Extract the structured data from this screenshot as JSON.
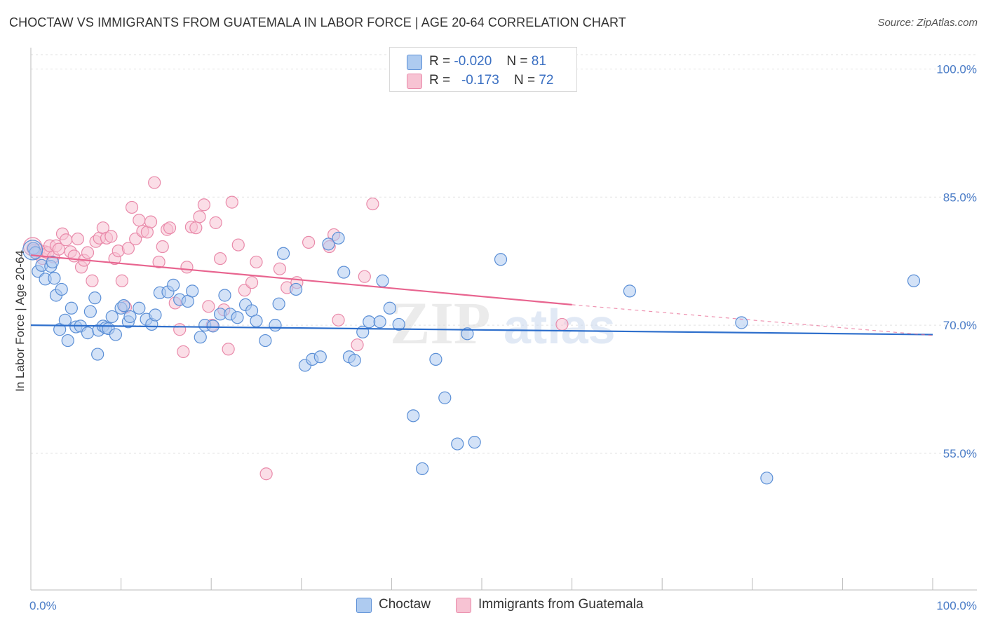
{
  "title": "CHOCTAW VS IMMIGRANTS FROM GUATEMALA IN LABOR FORCE | AGE 20-64 CORRELATION CHART",
  "source": "Source: ZipAtlas.com",
  "watermark": {
    "zip": "ZIP",
    "atlas": "atlas"
  },
  "legend_top": {
    "rows": [
      {
        "r_label": "R =",
        "r_value": "-0.020",
        "n_label": "N =",
        "n_value": "81"
      },
      {
        "r_label": "R =",
        "r_value": "-0.173",
        "n_label": "N =",
        "n_value": "72"
      }
    ]
  },
  "legend_bottom": {
    "series1": "Choctaw",
    "series2": "Immigrants from Guatemala"
  },
  "colors": {
    "blue_fill": "#aecbf0",
    "blue_stroke": "#5b8fd6",
    "blue_line": "#2e6fcc",
    "pink_fill": "#f7c3d3",
    "pink_stroke": "#e98aaa",
    "pink_line": "#e8648f",
    "tick_text": "#4a7cc7",
    "grid": "#e2e2e2"
  },
  "chart_data": {
    "type": "scatter",
    "title": "CHOCTAW VS IMMIGRANTS FROM GUATEMALA IN LABOR FORCE | AGE 20-64 CORRELATION CHART",
    "xlabel": "",
    "ylabel": "In Labor Force | Age 20-64",
    "xlim": [
      0,
      100
    ],
    "ylim": [
      39,
      102.5
    ],
    "x_tick_labels": [
      "0.0%",
      "100.0%"
    ],
    "y_ticks": [
      55,
      70,
      85,
      100
    ],
    "y_tick_labels": [
      "55.0%",
      "70.0%",
      "85.0%",
      "100.0%"
    ],
    "grid": true,
    "series": [
      {
        "name": "Choctaw",
        "R": -0.02,
        "N": 81,
        "trend": {
          "x0": 0,
          "y0": 70.0,
          "x1": 100,
          "y1": 68.9
        },
        "points": [
          [
            0.3,
            79
          ],
          [
            0.5,
            78.5
          ],
          [
            0.8,
            76.3
          ],
          [
            1.2,
            77.0
          ],
          [
            1.6,
            75.4
          ],
          [
            2.2,
            76.9
          ],
          [
            2.4,
            77.4
          ],
          [
            2.6,
            75.5
          ],
          [
            2.8,
            73.5
          ],
          [
            3.4,
            74.2
          ],
          [
            3.2,
            69.5
          ],
          [
            3.8,
            70.6
          ],
          [
            4.1,
            68.2
          ],
          [
            4.5,
            72.0
          ],
          [
            5.0,
            69.8
          ],
          [
            5.5,
            69.9
          ],
          [
            6.3,
            69.1
          ],
          [
            6.6,
            71.6
          ],
          [
            7.1,
            73.2
          ],
          [
            7.5,
            69.4
          ],
          [
            7.4,
            66.6
          ],
          [
            8.0,
            69.9
          ],
          [
            8.3,
            69.7
          ],
          [
            8.6,
            69.6
          ],
          [
            9.0,
            71.0
          ],
          [
            9.4,
            68.9
          ],
          [
            10.0,
            72.0
          ],
          [
            10.3,
            72.3
          ],
          [
            10.8,
            70.4
          ],
          [
            11.0,
            71.0
          ],
          [
            12.0,
            72.0
          ],
          [
            12.8,
            70.7
          ],
          [
            13.4,
            70.1
          ],
          [
            13.8,
            71.2
          ],
          [
            14.3,
            73.8
          ],
          [
            15.2,
            73.9
          ],
          [
            15.8,
            74.7
          ],
          [
            16.5,
            73.0
          ],
          [
            17.4,
            72.8
          ],
          [
            17.9,
            74.0
          ],
          [
            18.8,
            68.6
          ],
          [
            19.3,
            70.0
          ],
          [
            20.2,
            69.9
          ],
          [
            21.0,
            71.3
          ],
          [
            21.5,
            73.5
          ],
          [
            22.1,
            71.3
          ],
          [
            22.9,
            70.9
          ],
          [
            23.8,
            72.4
          ],
          [
            24.5,
            71.7
          ],
          [
            25.0,
            70.5
          ],
          [
            26.0,
            68.2
          ],
          [
            27.1,
            70.0
          ],
          [
            27.5,
            72.5
          ],
          [
            28.0,
            78.4
          ],
          [
            29.4,
            74.2
          ],
          [
            30.4,
            65.3
          ],
          [
            31.2,
            66.0
          ],
          [
            32.1,
            66.3
          ],
          [
            33.0,
            79.5
          ],
          [
            34.1,
            80.2
          ],
          [
            34.7,
            76.2
          ],
          [
            35.3,
            66.3
          ],
          [
            35.9,
            65.9
          ],
          [
            36.8,
            69.2
          ],
          [
            37.5,
            70.4
          ],
          [
            38.7,
            70.4
          ],
          [
            39.0,
            75.2
          ],
          [
            39.8,
            72.0
          ],
          [
            40.8,
            70.1
          ],
          [
            42.4,
            59.4
          ],
          [
            43.4,
            53.2
          ],
          [
            44.9,
            66.0
          ],
          [
            45.9,
            61.5
          ],
          [
            47.3,
            56.1
          ],
          [
            48.4,
            69.0
          ],
          [
            49.2,
            56.3
          ],
          [
            52.1,
            77.7
          ],
          [
            66.4,
            74.0
          ],
          [
            78.8,
            70.3
          ],
          [
            81.6,
            52.1
          ],
          [
            97.9,
            75.2
          ]
        ]
      },
      {
        "name": "Immigrants from Guatemala",
        "R": -0.173,
        "N": 72,
        "trend": {
          "x0": 0,
          "y0": 78.2,
          "x1": 60,
          "y1": 72.4,
          "dash_x1": 100,
          "dash_y1": 68.8
        },
        "points": [
          [
            0.2,
            79
          ],
          [
            0.4,
            78.8
          ],
          [
            0.6,
            78.4
          ],
          [
            0.9,
            78.8
          ],
          [
            1.3,
            77.8
          ],
          [
            1.6,
            78.6
          ],
          [
            1.9,
            78.5
          ],
          [
            2.1,
            79.3
          ],
          [
            2.5,
            78.0
          ],
          [
            2.8,
            79.3
          ],
          [
            3.1,
            78.9
          ],
          [
            3.5,
            80.7
          ],
          [
            3.9,
            80.0
          ],
          [
            4.4,
            78.6
          ],
          [
            4.8,
            78.1
          ],
          [
            5.2,
            80.1
          ],
          [
            5.6,
            76.8
          ],
          [
            5.9,
            77.6
          ],
          [
            6.3,
            78.5
          ],
          [
            6.8,
            75.2
          ],
          [
            7.2,
            79.8
          ],
          [
            7.6,
            80.2
          ],
          [
            8.0,
            81.4
          ],
          [
            8.4,
            80.2
          ],
          [
            8.9,
            80.4
          ],
          [
            9.3,
            77.8
          ],
          [
            9.7,
            78.7
          ],
          [
            10.1,
            75.2
          ],
          [
            10.5,
            72.1
          ],
          [
            10.8,
            79.0
          ],
          [
            11.2,
            83.8
          ],
          [
            11.6,
            80.1
          ],
          [
            12.0,
            82.3
          ],
          [
            12.4,
            81.0
          ],
          [
            12.9,
            80.9
          ],
          [
            13.3,
            82.1
          ],
          [
            13.7,
            86.7
          ],
          [
            14.2,
            77.4
          ],
          [
            14.6,
            79.2
          ],
          [
            15.1,
            81.2
          ],
          [
            15.4,
            81.4
          ],
          [
            16.0,
            72.6
          ],
          [
            16.5,
            69.5
          ],
          [
            16.9,
            66.9
          ],
          [
            17.3,
            76.8
          ],
          [
            17.8,
            81.5
          ],
          [
            18.3,
            81.4
          ],
          [
            18.7,
            82.7
          ],
          [
            19.2,
            84.1
          ],
          [
            19.7,
            72.2
          ],
          [
            20.1,
            70.0
          ],
          [
            20.5,
            82.0
          ],
          [
            21.0,
            77.8
          ],
          [
            21.4,
            71.8
          ],
          [
            21.9,
            67.2
          ],
          [
            22.3,
            84.4
          ],
          [
            23.0,
            79.4
          ],
          [
            23.7,
            74.1
          ],
          [
            24.5,
            75.0
          ],
          [
            25.0,
            77.4
          ],
          [
            26.1,
            52.6
          ],
          [
            27.6,
            76.6
          ],
          [
            28.4,
            74.4
          ],
          [
            29.5,
            75.0
          ],
          [
            30.8,
            79.7
          ],
          [
            33.1,
            79.2
          ],
          [
            33.6,
            80.6
          ],
          [
            34.1,
            70.6
          ],
          [
            36.2,
            67.7
          ],
          [
            37.0,
            75.7
          ],
          [
            37.9,
            84.2
          ],
          [
            58.9,
            70.1
          ]
        ]
      }
    ]
  }
}
